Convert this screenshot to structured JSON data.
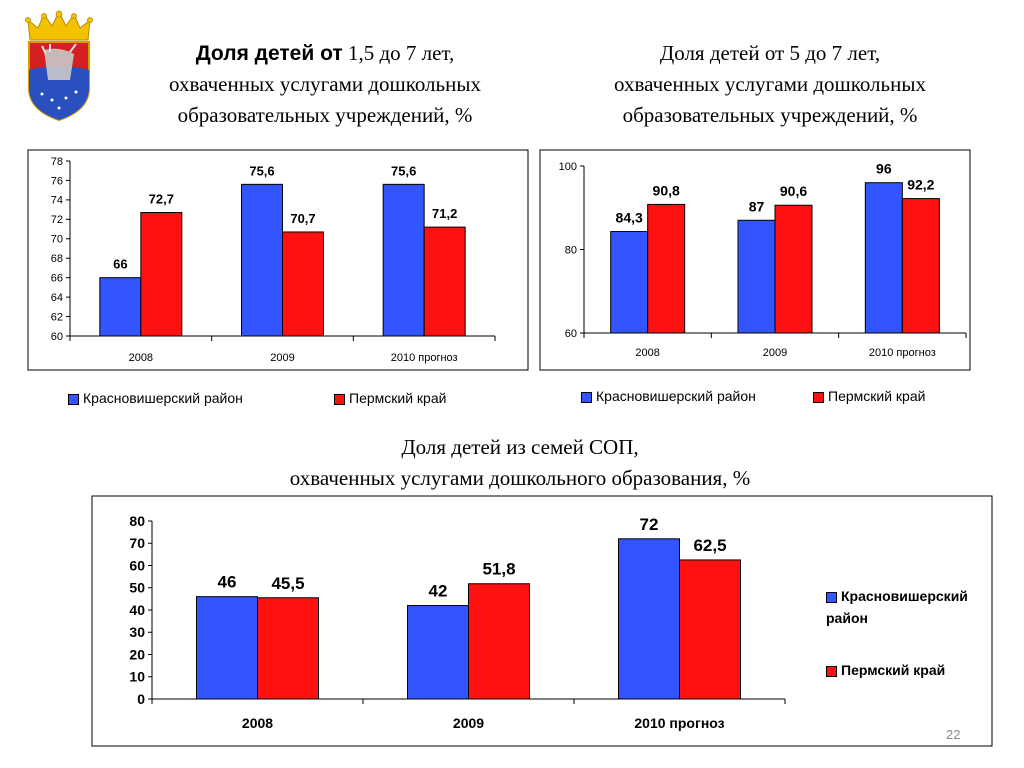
{
  "colors": {
    "series1": "#3355ff",
    "series2": "#ff1111",
    "emblem_red": "#d42020",
    "emblem_blue": "#2a4fbf",
    "crown": "#f2c200"
  },
  "emblem": {
    "icon": "coat-of-arms-icon"
  },
  "titles": {
    "chart1": {
      "line1_sans": "Доля детей от",
      "line1_serif": " 1,5 до 7 лет,",
      "line2": "охваченных услугами дошкольных",
      "line3": "образовательных учреждений, %"
    },
    "chart2": {
      "line1": "Доля детей от 5 до 7 лет,",
      "line2": "охваченных услугами дошкольных",
      "line3": "образовательных учреждений, %"
    },
    "chart3": {
      "line1": "Доля детей из семей СОП,",
      "line2": "охваченных услугами дошкольного образования, %"
    }
  },
  "legends": {
    "chart1": [
      "Красновишерский  район",
      "Пермский край"
    ],
    "chart2": [
      "Красновишерский район",
      "Пермский край"
    ],
    "chart3": [
      "Красновишерский район",
      "Пермский край"
    ]
  },
  "chart_data": [
    {
      "type": "bar",
      "categories": [
        "2008",
        "2009",
        "2010 прогноз"
      ],
      "series": [
        {
          "name": "Красновишерский  район",
          "values": [
            66,
            75.6,
            75.6
          ],
          "labels": [
            "66",
            "75,6",
            "75,6"
          ]
        },
        {
          "name": "Пермский край",
          "values": [
            72.7,
            70.7,
            71.2
          ],
          "labels": [
            "72,7",
            "70,7",
            "71,2"
          ]
        }
      ],
      "ylim": [
        60,
        78
      ],
      "yticks": [
        "60",
        "62",
        "64",
        "66",
        "68",
        "70",
        "72",
        "74",
        "76",
        "78"
      ],
      "legend": "bottom"
    },
    {
      "type": "bar",
      "categories": [
        "2008",
        "2009",
        "2010 прогноз"
      ],
      "series": [
        {
          "name": "Красновишерский район",
          "values": [
            84.3,
            87,
            96
          ],
          "labels": [
            "84,3",
            "87",
            "96"
          ]
        },
        {
          "name": "Пермский край",
          "values": [
            90.8,
            90.6,
            92.2
          ],
          "labels": [
            "90,8",
            "90,6",
            "92,2"
          ]
        }
      ],
      "ylim": [
        60,
        100
      ],
      "yticks": [
        "60",
        "80",
        "100"
      ],
      "legend": "bottom"
    },
    {
      "type": "bar",
      "categories": [
        "2008",
        "2009",
        "2010 прогноз"
      ],
      "series": [
        {
          "name": "Красновишерский район",
          "values": [
            46,
            42,
            72
          ],
          "labels": [
            "46",
            "42",
            "72"
          ]
        },
        {
          "name": "Пермский край",
          "values": [
            45.5,
            51.8,
            62.5
          ],
          "labels": [
            "45,5",
            "51,8",
            "62,5"
          ]
        }
      ],
      "ylim": [
        0,
        80
      ],
      "yticks": [
        "0",
        "10",
        "20",
        "30",
        "40",
        "50",
        "60",
        "70",
        "80"
      ],
      "legend": "right"
    }
  ],
  "slide_number": "22"
}
